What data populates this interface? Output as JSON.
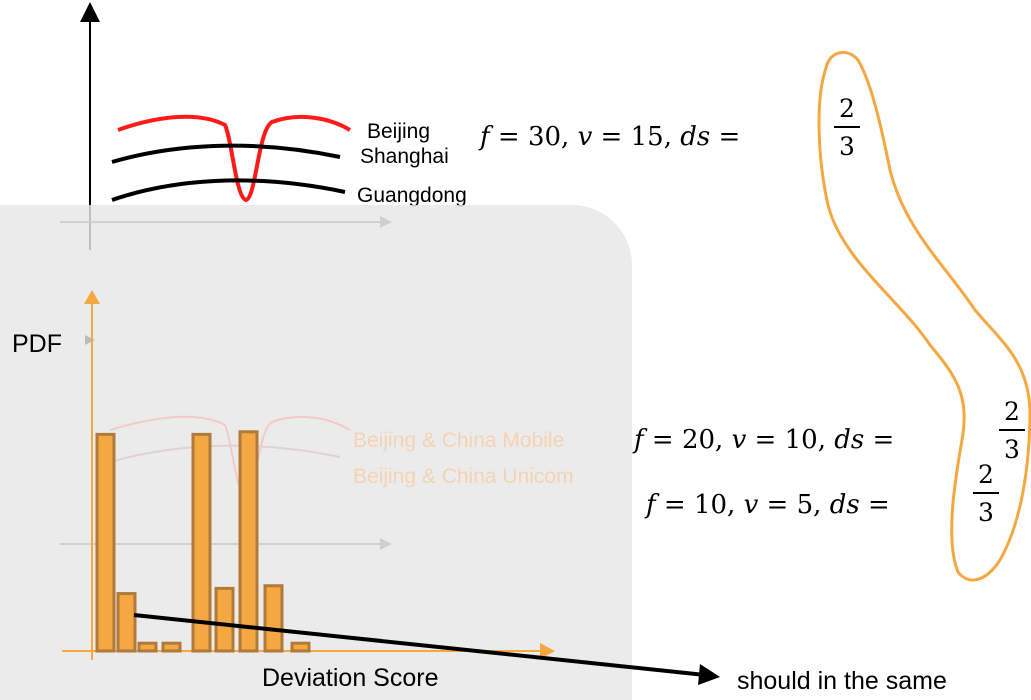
{
  "top_chart": {
    "series": [
      {
        "name": "Beijing",
        "color": "#ff1a1a"
      },
      {
        "name": "Shanghai",
        "color": "#000000"
      },
      {
        "name": "Guangdong",
        "color": "#000000"
      }
    ]
  },
  "ghost_labels": [
    "Beijing & China Mobile",
    "Beijing & China Unicom"
  ],
  "formulas": [
    {
      "f": "30",
      "v": "15",
      "num": "2",
      "den": "3"
    },
    {
      "f": "20",
      "v": "10",
      "num": "2",
      "den": "3"
    },
    {
      "f": "10",
      "v": "5",
      "num": "2",
      "den": "3"
    }
  ],
  "pdf_chart": {
    "ylabel": "PDF",
    "xlabel": "Deviation Score",
    "bar_color": "#f5a742",
    "bar_stroke": "#b07a3a",
    "accent_axis": "#f5a742"
  },
  "chart_data": {
    "type": "bar",
    "xlabel": "Deviation Score",
    "ylabel": "PDF",
    "values": [
      0.83,
      0.22,
      0.03,
      0.03,
      0.83,
      0.24,
      0.84,
      0.25,
      0.03
    ],
    "ylim": [
      0,
      1
    ]
  },
  "note": "should in the same",
  "colors": {
    "highlight_outline": "#f5a742",
    "arrow": "#000000"
  }
}
